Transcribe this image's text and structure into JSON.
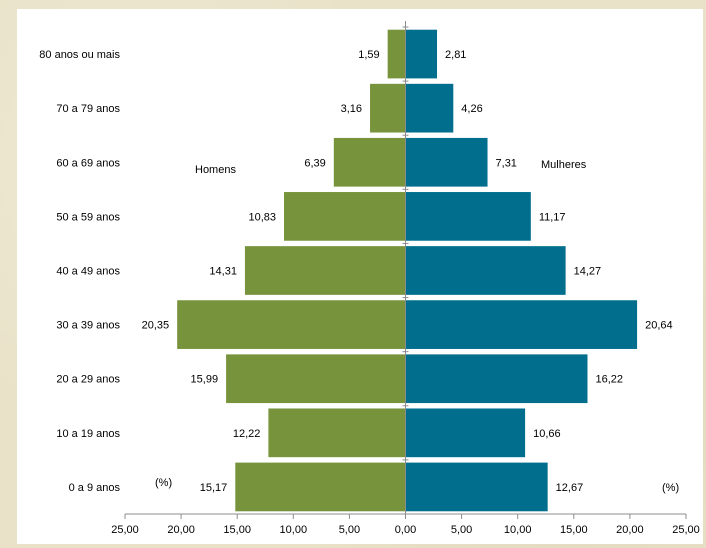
{
  "chart_data": {
    "type": "bar",
    "orientation": "horizontal",
    "layout": "population-pyramid",
    "categories": [
      "80 anos ou mais",
      "70 a 79 anos",
      "60 a 69 anos",
      "50 a 59 anos",
      "40 a 49 anos",
      "30 a 39 anos",
      "20 a 29 anos",
      "10 a 19 anos",
      "0 a 9 anos"
    ],
    "series": [
      {
        "name": "Homens",
        "color": "#77933c",
        "side": "left",
        "values": [
          1.59,
          3.16,
          6.39,
          10.83,
          14.31,
          20.35,
          15.99,
          12.22,
          15.17
        ],
        "labels": [
          "1,59",
          "3,16",
          "6,39",
          "10,83",
          "14,31",
          "20,35",
          "15,99",
          "12,22",
          "15,17"
        ]
      },
      {
        "name": "Mulheres",
        "color": "#006e8c",
        "side": "right",
        "values": [
          2.81,
          4.26,
          7.31,
          11.17,
          14.27,
          20.64,
          16.22,
          10.66,
          12.67
        ],
        "labels": [
          "2,81",
          "4,26",
          "7,31",
          "11,17",
          "14,27",
          "20,64",
          "16,22",
          "10,66",
          "12,67"
        ]
      }
    ],
    "xlim": [
      -25,
      25
    ],
    "xticks": [
      -25,
      -20,
      -15,
      -10,
      -5,
      0,
      5,
      10,
      15,
      20,
      25
    ],
    "xtick_labels": [
      "25,00",
      "20,00",
      "15,00",
      "10,00",
      "5,00",
      "0,00",
      "5,00",
      "10,00",
      "15,00",
      "20,00",
      "25,00"
    ],
    "unit_labels": [
      "(%)",
      "(%)"
    ],
    "grid": false,
    "title": "",
    "xlabel": "",
    "ylabel": ""
  }
}
